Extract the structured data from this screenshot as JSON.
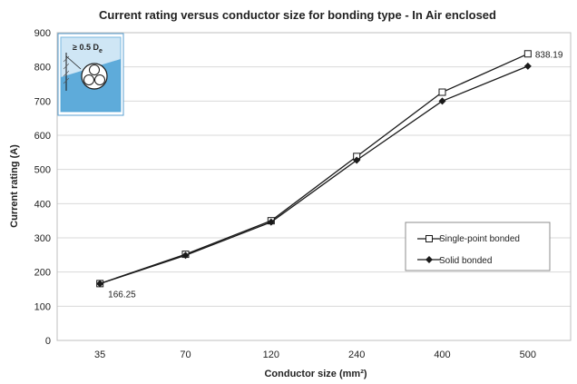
{
  "chart_data": {
    "type": "line",
    "title": "Current rating versus conductor size for bonding type - In Air enclosed",
    "xlabel": "Conductor size (mm²)",
    "ylabel": "Current rating (A)",
    "categories": [
      "35",
      "70",
      "120",
      "240",
      "400",
      "500"
    ],
    "ylim": [
      0,
      900
    ],
    "yticks": [
      "0",
      "100",
      "200",
      "300",
      "400",
      "500",
      "600",
      "700",
      "800",
      "900"
    ],
    "grid": true,
    "legend_position": "right",
    "series": [
      {
        "name": "Single-point bonded",
        "marker": "open-square",
        "values": [
          166.25,
          252,
          350,
          538,
          726,
          838.19
        ]
      },
      {
        "name": "Solid bonded",
        "marker": "filled-diamond",
        "values": [
          166,
          249,
          346,
          527,
          700,
          802
        ]
      }
    ],
    "annotations": [
      {
        "text": "166.25",
        "series": 0,
        "index": 0
      },
      {
        "text": "838.19",
        "series": 0,
        "index": 5
      }
    ],
    "inset": {
      "label_main": "≥ 0.5 D",
      "label_sub": "e"
    },
    "colors": {
      "line": "#1a1a1a",
      "grid": "#d9d9d9",
      "inset_blue": "#4aa0d5"
    }
  }
}
